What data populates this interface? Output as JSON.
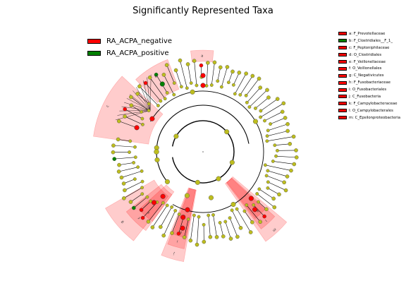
{
  "title": "Significantly Represented Taxa",
  "colors": {
    "negative": "#ff0000",
    "positive": "#008000",
    "neutral_node": "#bdbd1e",
    "sector_fill": "#ff0000"
  },
  "legend": [
    {
      "label": "RA_ACPA_negative",
      "color": "#ff0000"
    },
    {
      "label": "RA_ACPA_positive",
      "color": "#008000"
    }
  ],
  "taxa_legend": [
    {
      "letter": "a",
      "name": "F_Prevotellaceae",
      "color": "#ff0000"
    },
    {
      "letter": "b",
      "name": "F_Clostridiales__F_1_",
      "color": "#008000"
    },
    {
      "letter": "c",
      "name": "F_Peptoniphilaceae",
      "color": "#ff0000"
    },
    {
      "letter": "d",
      "name": "O_Clostridiales",
      "color": "#ff0000"
    },
    {
      "letter": "e",
      "name": "F_Veillonellaceae",
      "color": "#ff0000"
    },
    {
      "letter": "f",
      "name": "O_Veillonellales",
      "color": "#ff0000"
    },
    {
      "letter": "g",
      "name": "C_Negativicutes",
      "color": "#ff0000"
    },
    {
      "letter": "h",
      "name": "F_Fusobacteriaceae",
      "color": "#ff0000"
    },
    {
      "letter": "i",
      "name": "O_Fusobacteriales",
      "color": "#ff0000"
    },
    {
      "letter": "j",
      "name": "C_Fusobacteria",
      "color": "#ff0000"
    },
    {
      "letter": "k",
      "name": "F_Campylobacteraceae",
      "color": "#ff0000"
    },
    {
      "letter": "l",
      "name": "O_Campylobacterales",
      "color": "#ff0000"
    },
    {
      "letter": "m",
      "name": "C_Epsilonproteobacteria",
      "color": "#ff0000"
    }
  ]
}
